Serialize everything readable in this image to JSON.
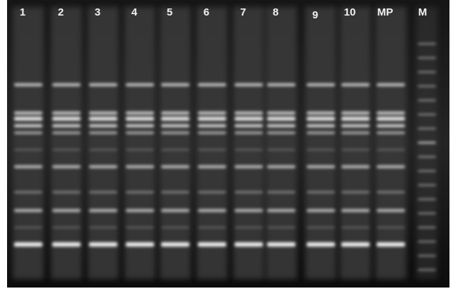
{
  "lanes": [
    "1",
    "2",
    "3",
    "4",
    "5",
    "6",
    "7",
    "8",
    "9",
    "10",
    "MP",
    "M"
  ]
}
